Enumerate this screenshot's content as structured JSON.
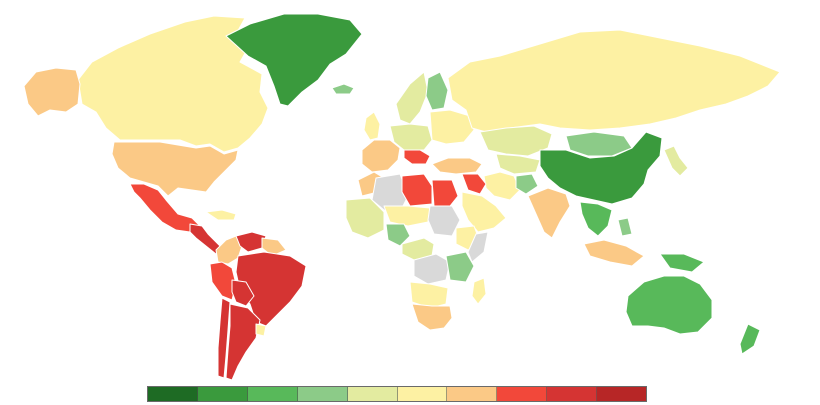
{
  "map": {
    "no_data_color": "#d9d9d9",
    "legend": {
      "colors": [
        "#1e6b24",
        "#3a9a3d",
        "#58b95a",
        "#8ccb88",
        "#e3eba0",
        "#fdf1a3",
        "#fbc986",
        "#f2483a",
        "#d53433",
        "#b72626"
      ]
    },
    "regions": [
      {
        "name": "greenland-region",
        "cls": 1
      },
      {
        "name": "canada-region",
        "cls": 5
      },
      {
        "name": "alaska-region",
        "cls": 6
      },
      {
        "name": "usa-region",
        "cls": 6
      },
      {
        "name": "mexico-region",
        "cls": 7
      },
      {
        "name": "central-america-region",
        "cls": 8
      },
      {
        "name": "caribbean-region",
        "cls": 5
      },
      {
        "name": "venezuela-region",
        "cls": 8
      },
      {
        "name": "colombia-region",
        "cls": 6
      },
      {
        "name": "guianas-region",
        "cls": 6
      },
      {
        "name": "brazil-region",
        "cls": 8
      },
      {
        "name": "peru-region",
        "cls": 7
      },
      {
        "name": "bolivia-region",
        "cls": 8
      },
      {
        "name": "chile-region",
        "cls": 8
      },
      {
        "name": "argentina-region",
        "cls": 8
      },
      {
        "name": "uruguay-region",
        "cls": 5
      },
      {
        "name": "iceland-region",
        "cls": 3
      },
      {
        "name": "uk-region",
        "cls": 5
      },
      {
        "name": "scandinavia-region",
        "cls": 4
      },
      {
        "name": "finland-region",
        "cls": 3
      },
      {
        "name": "western-europe-region",
        "cls": 6
      },
      {
        "name": "central-europe-region",
        "cls": 4
      },
      {
        "name": "eastern-europe-region",
        "cls": 5
      },
      {
        "name": "balkans-region",
        "cls": 7
      },
      {
        "name": "russia-region",
        "cls": 5
      },
      {
        "name": "turkey-region",
        "cls": 6
      },
      {
        "name": "kazakhstan-region",
        "cls": 4
      },
      {
        "name": "mongolia-region",
        "cls": 3
      },
      {
        "name": "china-region",
        "cls": 1
      },
      {
        "name": "korea-japan-region",
        "cls": 4
      },
      {
        "name": "central-asia-region",
        "cls": 4
      },
      {
        "name": "iran-region",
        "cls": 5
      },
      {
        "name": "arabia-region",
        "cls": 5
      },
      {
        "name": "iraq-syria-region",
        "cls": 7
      },
      {
        "name": "afghanistan-region",
        "cls": 3
      },
      {
        "name": "india-region",
        "cls": 6
      },
      {
        "name": "southeast-asia-region",
        "cls": 2
      },
      {
        "name": "indonesia-region",
        "cls": 6
      },
      {
        "name": "philippines-region",
        "cls": 3
      },
      {
        "name": "papua-region",
        "cls": 2
      },
      {
        "name": "australia-region",
        "cls": 2
      },
      {
        "name": "new-zealand-region",
        "cls": 2
      },
      {
        "name": "morocco-region",
        "cls": 6
      },
      {
        "name": "algeria-region",
        "cls": -1
      },
      {
        "name": "libya-region",
        "cls": 7
      },
      {
        "name": "egypt-region",
        "cls": 7
      },
      {
        "name": "west-africa-region",
        "cls": 4
      },
      {
        "name": "sahel-region",
        "cls": 5
      },
      {
        "name": "nigeria-region",
        "cls": 3
      },
      {
        "name": "sudan-region",
        "cls": -1
      },
      {
        "name": "ethiopia-region",
        "cls": 5
      },
      {
        "name": "somalia-region",
        "cls": -1
      },
      {
        "name": "central-africa-region",
        "cls": 4
      },
      {
        "name": "congo-region",
        "cls": -1
      },
      {
        "name": "east-africa-region",
        "cls": 3
      },
      {
        "name": "angola-region",
        "cls": 5
      },
      {
        "name": "southern-africa-region",
        "cls": 6
      },
      {
        "name": "madagascar-region",
        "cls": 5
      }
    ]
  }
}
